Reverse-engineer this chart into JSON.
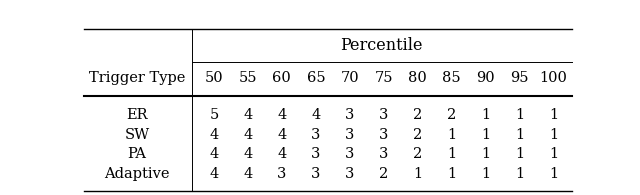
{
  "title": "Percentile",
  "col_header_left": "Trigger Type",
  "col_headers": [
    "50",
    "55",
    "60",
    "65",
    "70",
    "75",
    "80",
    "85",
    "90",
    "95",
    "100"
  ],
  "row_labels": [
    "ER",
    "SW",
    "PA",
    "Adaptive"
  ],
  "table_data": [
    [
      5,
      4,
      4,
      4,
      3,
      3,
      2,
      2,
      1,
      1,
      1
    ],
    [
      4,
      4,
      4,
      3,
      3,
      3,
      2,
      1,
      1,
      1,
      1
    ],
    [
      4,
      4,
      4,
      3,
      3,
      3,
      2,
      1,
      1,
      1,
      1
    ],
    [
      4,
      4,
      3,
      3,
      3,
      2,
      1,
      1,
      1,
      1,
      1
    ]
  ],
  "bg_color": "#ffffff",
  "text_color": "#000000",
  "font_size": 10.5,
  "title_font_size": 11.5
}
